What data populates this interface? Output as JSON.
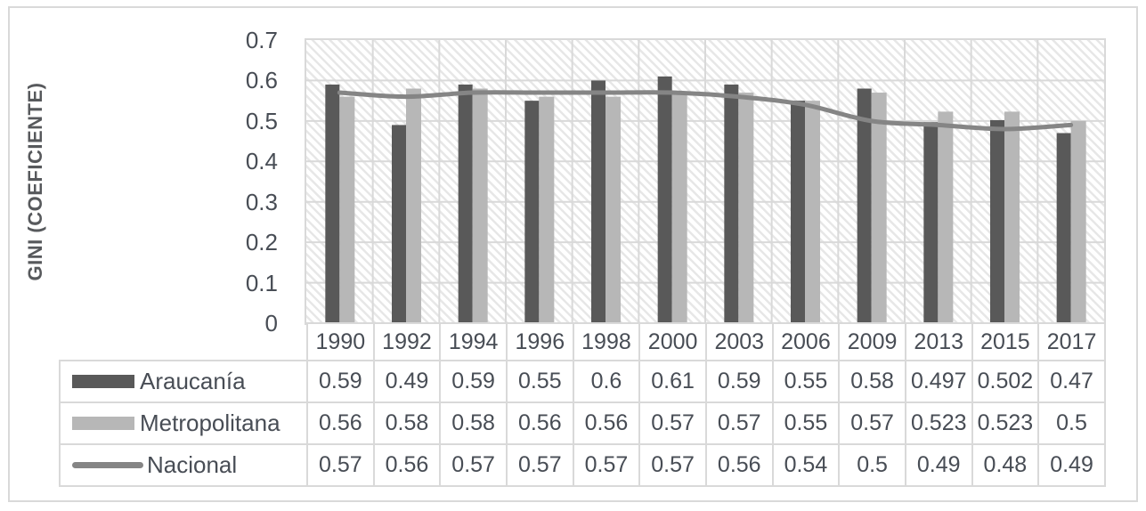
{
  "chart_data": {
    "type": "bar",
    "subtype": "grouped-bars-with-line-overlay",
    "title": "",
    "ylabel": "GINI (COEFICIENTE)",
    "xlabel": "",
    "ylim": [
      0,
      0.7
    ],
    "ytick_step": 0.1,
    "yticks": [
      "0.7",
      "0.6",
      "0.5",
      "0.4",
      "0.3",
      "0.2",
      "0.1",
      "0"
    ],
    "grid": true,
    "plot_background": "diagonal-hatch",
    "legend_position": "table-left-column",
    "categories": [
      "1990",
      "1992",
      "1994",
      "1996",
      "1998",
      "2000",
      "2003",
      "2006",
      "2009",
      "2013",
      "2015",
      "2017"
    ],
    "series": [
      {
        "key": "araucania",
        "name": "Araucanía",
        "chart_type": "bar",
        "color": "#595959",
        "values": [
          "0.59",
          "0.49",
          "0.59",
          "0.55",
          "0.6",
          "0.61",
          "0.59",
          "0.55",
          "0.58",
          "0.497",
          "0.502",
          "0.47"
        ]
      },
      {
        "key": "metropolitana",
        "name": "Metropolitana",
        "chart_type": "bar",
        "color": "#b7b7b7",
        "values": [
          "0.56",
          "0.58",
          "0.58",
          "0.56",
          "0.56",
          "0.57",
          "0.57",
          "0.55",
          "0.57",
          "0.523",
          "0.523",
          "0.5"
        ]
      },
      {
        "key": "nacional",
        "name": "Nacional",
        "chart_type": "line",
        "color": "#858585",
        "values": [
          "0.57",
          "0.56",
          "0.57",
          "0.57",
          "0.57",
          "0.57",
          "0.56",
          "0.54",
          "0.5",
          "0.49",
          "0.48",
          "0.49"
        ]
      }
    ],
    "colors": {
      "grid": "#d9d9d9",
      "frame": "#d9d9d9",
      "text": "#484d55",
      "axis_title": "#57595c",
      "plot_hatch": "#e7e7e7"
    }
  }
}
